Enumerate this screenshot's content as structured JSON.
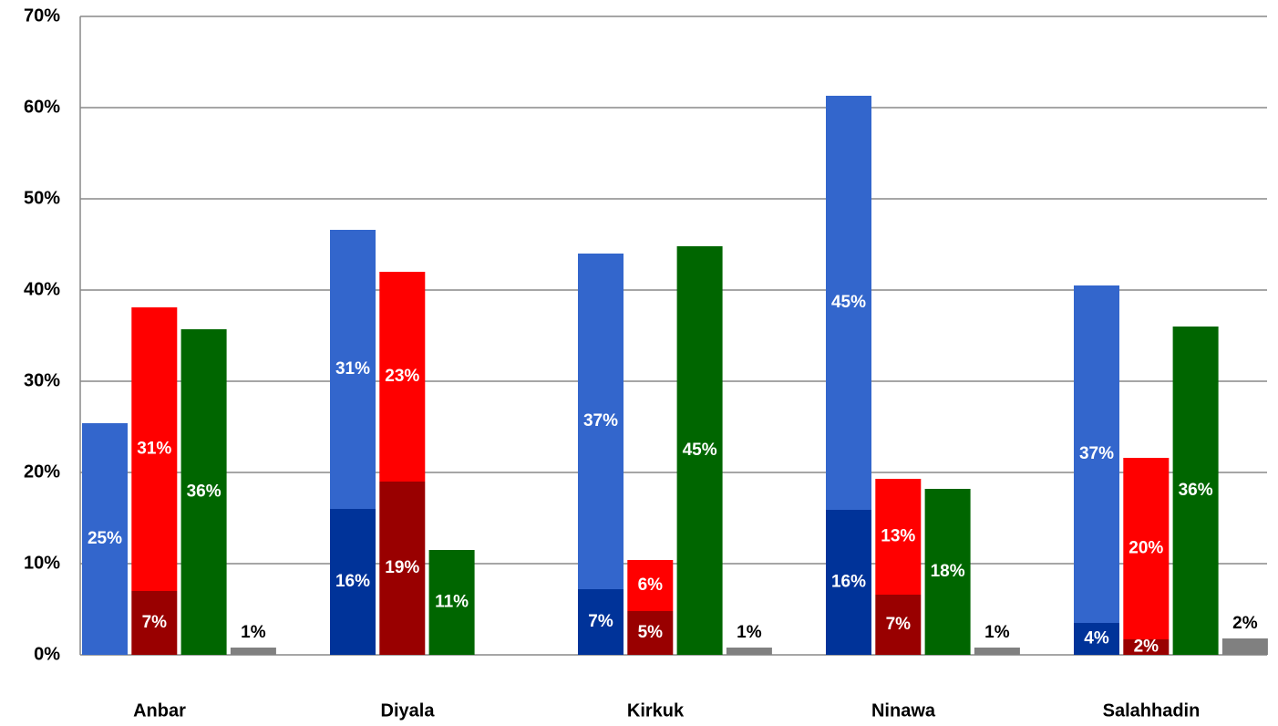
{
  "chart_data": {
    "type": "grouped-stacked-bar",
    "categories": [
      "Anbar",
      "Diyala",
      "Kirkuk",
      "Ninawa",
      "Salahhadin"
    ],
    "ylim": [
      0,
      70
    ],
    "yticks": [
      {
        "value": 0,
        "label": "0%"
      },
      {
        "value": 10,
        "label": "10%"
      },
      {
        "value": 20,
        "label": "20%"
      },
      {
        "value": 30,
        "label": "30%"
      },
      {
        "value": 40,
        "label": "40%"
      },
      {
        "value": 50,
        "label": "50%"
      },
      {
        "value": 60,
        "label": "60%"
      },
      {
        "value": 70,
        "label": "70%"
      }
    ],
    "grid": true,
    "bars": [
      {
        "segments": [
          {
            "color": "#003399",
            "label_color": "#ffffff",
            "values": [
              null,
              16,
              7.2,
              15.9,
              3.5
            ],
            "value_labels": [
              null,
              "16%",
              "7%",
              "16%",
              "4%"
            ]
          },
          {
            "color": "#3366cc",
            "label_color": "#ffffff",
            "values": [
              25.4,
              30.6,
              36.8,
              45.4,
              37
            ],
            "value_labels": [
              "25%",
              "31%",
              "37%",
              "45%",
              "37%"
            ]
          }
        ]
      },
      {
        "segments": [
          {
            "color": "#990000",
            "label_color": "#ffffff",
            "values": [
              7,
              19,
              4.8,
              6.6,
              1.7
            ],
            "value_labels": [
              "7%",
              "19%",
              "5%",
              "7%",
              "2%"
            ]
          },
          {
            "color": "#ff0000",
            "label_color": "#ffffff",
            "values": [
              31.1,
              23,
              5.6,
              12.7,
              19.9
            ],
            "value_labels": [
              "31%",
              "23%",
              "6%",
              "13%",
              "20%"
            ]
          }
        ]
      },
      {
        "segments": [
          {
            "color": "#006600",
            "label_color": "#ffffff",
            "values": [
              35.7,
              11.5,
              44.8,
              18.2,
              36
            ],
            "value_labels": [
              "36%",
              "11%",
              "45%",
              "18%",
              "36%"
            ]
          }
        ]
      },
      {
        "segments": [
          {
            "color": "#808080",
            "label_color": "#000000",
            "label_above": true,
            "values": [
              0.8,
              null,
              0.8,
              0.8,
              1.8
            ],
            "value_labels": [
              "1%",
              null,
              "1%",
              "1%",
              "2%"
            ]
          }
        ]
      }
    ]
  }
}
